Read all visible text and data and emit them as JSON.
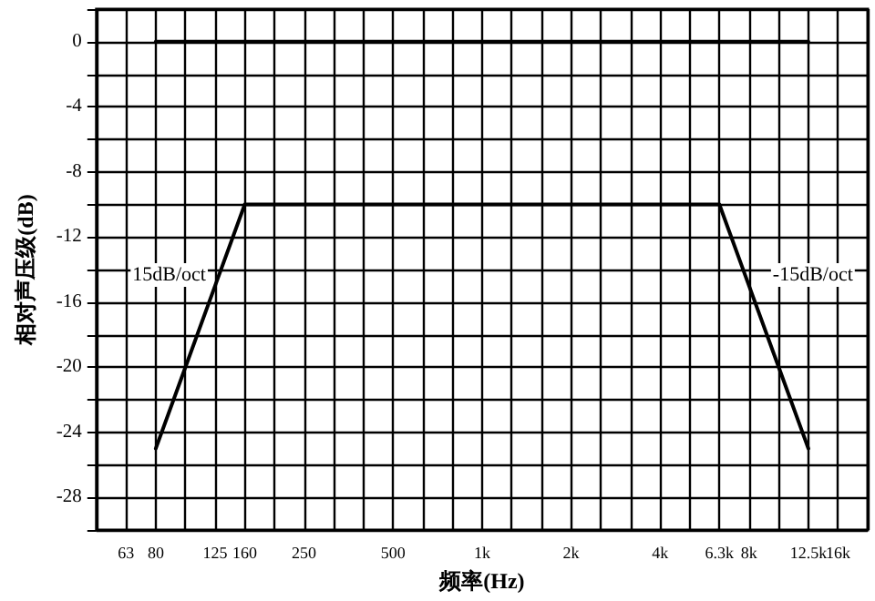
{
  "chart_data": {
    "type": "line",
    "xlabel": "频率(Hz)",
    "ylabel": "相对声压级(dB)",
    "categories": [
      null,
      "63",
      "80",
      null,
      "125",
      "160",
      null,
      "250",
      null,
      null,
      "500",
      null,
      null,
      "1k",
      null,
      null,
      "2k",
      null,
      null,
      "4k",
      null,
      "6.3k",
      "8k",
      null,
      "12.5k",
      "16k",
      null
    ],
    "series": [
      {
        "color": "#000000",
        "values": [
          null,
          null,
          0,
          0,
          0,
          0,
          0,
          0,
          0,
          0,
          0,
          0,
          0,
          0,
          0,
          0,
          0,
          0,
          0,
          0,
          0,
          0,
          0,
          0,
          0,
          null,
          null
        ]
      },
      {
        "color": "#000000",
        "values": [
          null,
          null,
          -25,
          -20,
          -15,
          -10,
          -10,
          -10,
          -10,
          -10,
          -10,
          -10,
          -10,
          -10,
          -10,
          -10,
          -10,
          -10,
          -10,
          -10,
          -10,
          -10,
          -15,
          -20,
          -25,
          null,
          null
        ]
      }
    ],
    "ylim": [
      -30,
      2
    ],
    "yticks": [
      {
        "value": -30,
        "label": null
      },
      -28,
      {
        "value": -26,
        "label": null
      },
      -24,
      {
        "value": -22,
        "label": null
      },
      -20,
      {
        "value": -18,
        "label": null
      },
      -16,
      {
        "value": -14,
        "label": null
      },
      -12,
      {
        "value": -10,
        "label": null
      },
      -8,
      {
        "value": -6,
        "label": null
      },
      -4,
      {
        "value": -2,
        "label": null
      },
      0,
      {
        "value": 2,
        "label": null
      }
    ],
    "grid": true,
    "annotations": [
      {
        "text": "15dB/oct",
        "x": "125",
        "y": -15
      },
      {
        "text": "-15dB/oct",
        "x": "8k",
        "y": -15
      }
    ]
  }
}
